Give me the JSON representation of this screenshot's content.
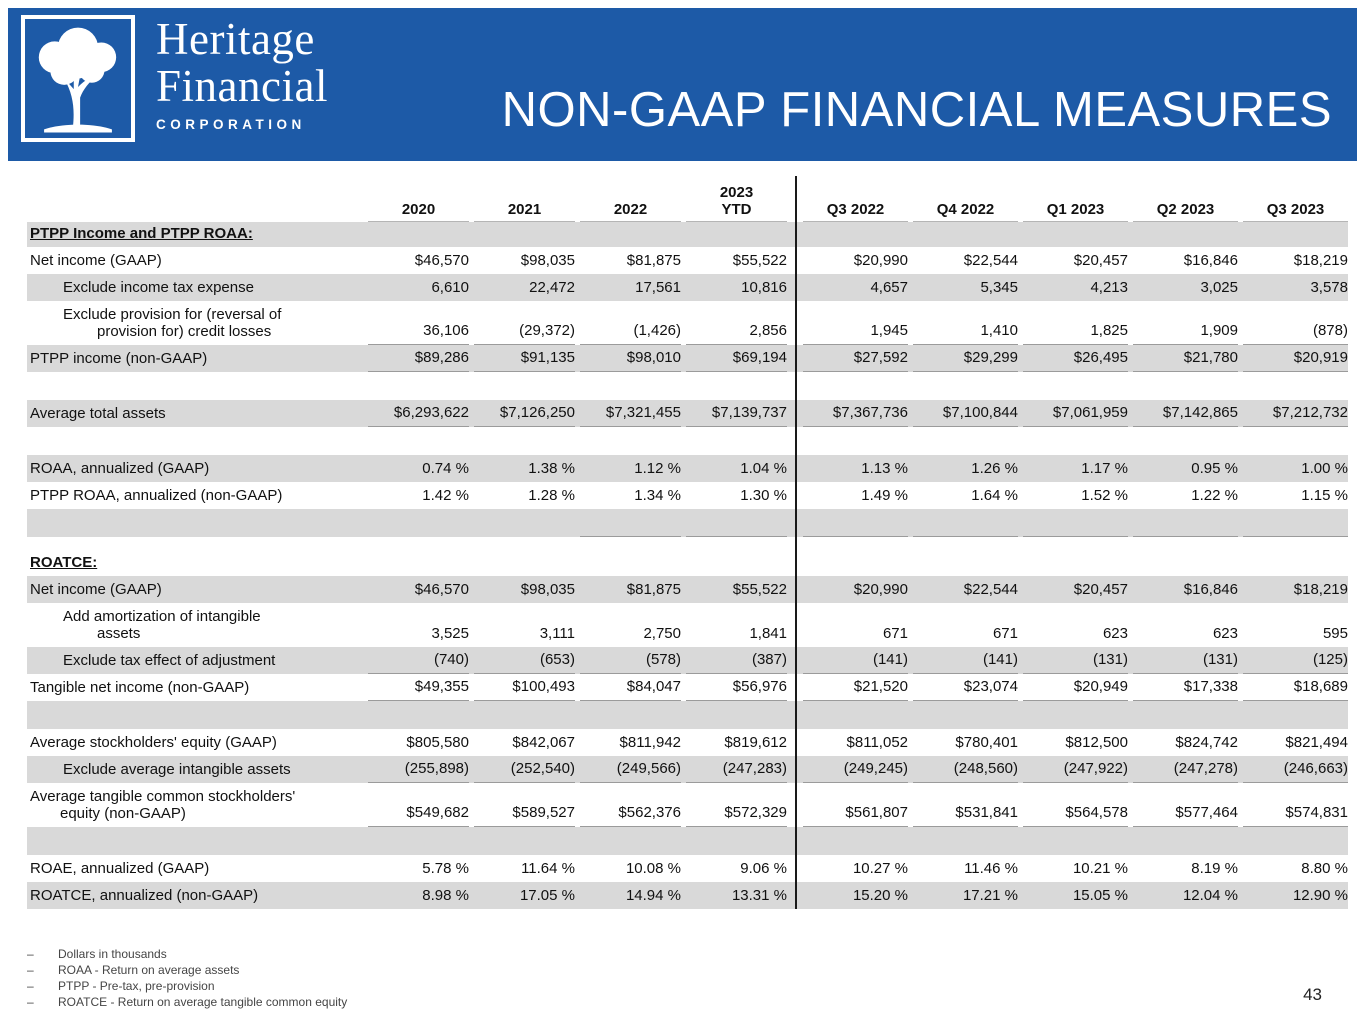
{
  "header": {
    "brand_line1": "Heritage",
    "brand_line2": "Financial",
    "brand_line3": "CORPORATION",
    "title": "NON-GAAP FINANCIAL MEASURES",
    "logo_icon": "tree-icon",
    "colors": {
      "band_blue": "#1d5aa7",
      "stripe_gray": "#d9d9d9",
      "rule_gray": "#9b9b9b",
      "divider_black": "#1a1a1a"
    }
  },
  "table": {
    "columns": [
      "2020",
      "2021",
      "2022",
      "2023\nYTD",
      "Q3 2022",
      "Q4 2022",
      "Q1 2023",
      "Q2 2023",
      "Q3 2023"
    ],
    "rows": [
      {
        "variant": "sec",
        "stripe": true,
        "label": "PTPP Income and PTPP ROAA:",
        "values": []
      },
      {
        "variant": "r",
        "stripe": false,
        "label": "Net income (GAAP)",
        "values": [
          "$46,570",
          "$98,035",
          "$81,875",
          "$55,522",
          "$20,990",
          "$22,544",
          "$20,457",
          "$16,846",
          "$18,219"
        ]
      },
      {
        "variant": "r",
        "stripe": true,
        "indent": 1,
        "label": "Exclude income tax expense",
        "values": [
          "6,610",
          "22,472",
          "17,561",
          "10,816",
          "4,657",
          "5,345",
          "4,213",
          "3,025",
          "3,578"
        ]
      },
      {
        "variant": "r2",
        "stripe": false,
        "indent": 1,
        "rule": true,
        "label": "Exclude provision for (reversal of\nprovision for) credit losses",
        "values": [
          "36,106",
          "(29,372)",
          "(1,426)",
          "2,856",
          "1,945",
          "1,410",
          "1,825",
          "1,909",
          "(878)"
        ]
      },
      {
        "variant": "r",
        "stripe": true,
        "rule": true,
        "label": "PTPP income (non-GAAP)",
        "values": [
          "$89,286",
          "$91,135",
          "$98,010",
          "$69,194",
          "$27,592",
          "$29,299",
          "$26,495",
          "$21,780",
          "$20,919"
        ]
      },
      {
        "variant": "blank",
        "stripe": false,
        "label": "",
        "values": []
      },
      {
        "variant": "r",
        "stripe": true,
        "rule": true,
        "label": "Average total assets",
        "values": [
          "$6,293,622",
          "$7,126,250",
          "$7,321,455",
          "$7,139,737",
          "$7,367,736",
          "$7,100,844",
          "$7,061,959",
          "$7,142,865",
          "$7,212,732"
        ]
      },
      {
        "variant": "blank",
        "stripe": false,
        "label": "",
        "values": []
      },
      {
        "variant": "r",
        "stripe": true,
        "label": "ROAA, annualized (GAAP)",
        "values": [
          "0.74 %",
          "1.38 %",
          "1.12 %",
          "1.04 %",
          "1.13 %",
          "1.26 %",
          "1.17 %",
          "0.95 %",
          "1.00 %"
        ]
      },
      {
        "variant": "r",
        "stripe": false,
        "label": "PTPP ROAA, annualized (non-GAAP)",
        "values": [
          "1.42 %",
          "1.28 %",
          "1.34 %",
          "1.30 %",
          "1.49 %",
          "1.64 %",
          "1.52 %",
          "1.22 %",
          "1.15 %"
        ]
      },
      {
        "variant": "blank",
        "stripe": true,
        "rule_from": 2,
        "label": "",
        "values": []
      },
      {
        "variant": "blankS",
        "stripe": false,
        "label": "",
        "values": []
      },
      {
        "variant": "sec",
        "stripe": false,
        "label": "ROATCE:",
        "values": []
      },
      {
        "variant": "r",
        "stripe": true,
        "label": "Net income (GAAP)",
        "values": [
          "$46,570",
          "$98,035",
          "$81,875",
          "$55,522",
          "$20,990",
          "$22,544",
          "$20,457",
          "$16,846",
          "$18,219"
        ]
      },
      {
        "variant": "r2",
        "stripe": false,
        "indent": 1,
        "label": "Add amortization of intangible\nassets",
        "values": [
          "3,525",
          "3,111",
          "2,750",
          "1,841",
          "671",
          "671",
          "623",
          "623",
          "595"
        ]
      },
      {
        "variant": "r",
        "stripe": true,
        "indent": 1,
        "rule": true,
        "label": "Exclude tax effect of adjustment",
        "values": [
          "(740)",
          "(653)",
          "(578)",
          "(387)",
          "(141)",
          "(141)",
          "(131)",
          "(131)",
          "(125)"
        ]
      },
      {
        "variant": "r",
        "stripe": false,
        "rule": true,
        "label": "Tangible net income (non-GAAP)",
        "values": [
          "$49,355",
          "$100,493",
          "$84,047",
          "$56,976",
          "$21,520",
          "$23,074",
          "$20,949",
          "$17,338",
          "$18,689"
        ]
      },
      {
        "variant": "blank",
        "stripe": true,
        "label": "",
        "values": []
      },
      {
        "variant": "r",
        "stripe": false,
        "label": "Average stockholders' equity (GAAP)",
        "values": [
          "$805,580",
          "$842,067",
          "$811,942",
          "$819,612",
          "$811,052",
          "$780,401",
          "$812,500",
          "$824,742",
          "$821,494"
        ]
      },
      {
        "variant": "r",
        "stripe": true,
        "indent": 1,
        "rule": true,
        "label": "Exclude average intangible assets",
        "values": [
          "(255,898)",
          "(252,540)",
          "(249,566)",
          "(247,283)",
          "(249,245)",
          "(248,560)",
          "(247,922)",
          "(247,278)",
          "(246,663)"
        ]
      },
      {
        "variant": "r2",
        "stripe": false,
        "hang": true,
        "rule": true,
        "label": "Average tangible common stockholders'\nequity (non-GAAP)",
        "values": [
          "$549,682",
          "$589,527",
          "$562,376",
          "$572,329",
          "$561,807",
          "$531,841",
          "$564,578",
          "$577,464",
          "$574,831"
        ]
      },
      {
        "variant": "blank",
        "stripe": true,
        "label": "",
        "values": []
      },
      {
        "variant": "r",
        "stripe": false,
        "label": "ROAE, annualized (GAAP)",
        "values": [
          "5.78 %",
          "11.64 %",
          "10.08 %",
          "9.06 %",
          "10.27 %",
          "11.46 %",
          "10.21 %",
          "8.19 %",
          "8.80 %"
        ]
      },
      {
        "variant": "r",
        "stripe": true,
        "label": "ROATCE, annualized (non-GAAP)",
        "values": [
          "8.98 %",
          "17.05 %",
          "14.94 %",
          "13.31 %",
          "15.20 %",
          "17.21 %",
          "15.05 %",
          "12.04 %",
          "12.90 %"
        ]
      }
    ]
  },
  "footnotes": {
    "dash": "–",
    "items": [
      "Dollars in thousands",
      "ROAA - Return on average assets",
      "PTPP - Pre-tax, pre-provision",
      "ROATCE - Return on average tangible common equity"
    ]
  },
  "page_number": "43"
}
